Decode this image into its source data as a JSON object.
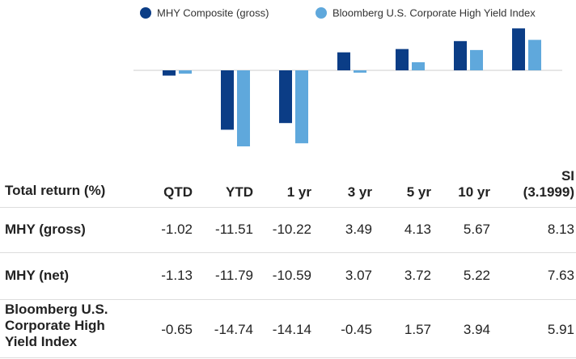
{
  "chart_data": {
    "type": "bar",
    "series": [
      {
        "name": "MHY Composite (gross)",
        "color": "#0b3d86",
        "values": [
          -1.02,
          -11.51,
          -10.22,
          3.49,
          4.13,
          5.67,
          8.13
        ]
      },
      {
        "name": "Bloomberg U.S. Corporate High Yield Index",
        "color": "#5fa8dc",
        "values": [
          -0.65,
          -14.74,
          -14.14,
          -0.45,
          1.57,
          3.94,
          5.91
        ]
      }
    ]
  },
  "table": {
    "header": [
      "Total return (%)",
      "QTD",
      "YTD",
      "1 yr",
      "3 yr",
      "5 yr",
      "10 yr",
      "SI (3.1999)"
    ],
    "rows": [
      [
        "MHY (gross)",
        -1.02,
        -11.51,
        -10.22,
        3.49,
        4.13,
        5.67,
        8.13
      ],
      [
        "MHY (net)",
        -1.13,
        -11.79,
        -10.59,
        3.07,
        3.72,
        5.22,
        7.63
      ],
      [
        "Bloomberg U.S. Corporate High Yield Index",
        -0.65,
        -14.74,
        -14.14,
        -0.45,
        1.57,
        3.94,
        5.91
      ]
    ]
  }
}
